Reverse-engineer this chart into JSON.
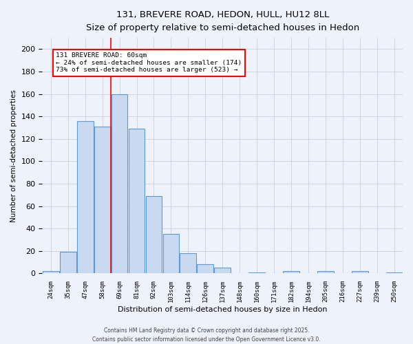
{
  "title1": "131, BREVERE ROAD, HEDON, HULL, HU12 8LL",
  "title2": "Size of property relative to semi-detached houses in Hedon",
  "xlabel": "Distribution of semi-detached houses by size in Hedon",
  "ylabel": "Number of semi-detached properties",
  "categories": [
    "24sqm",
    "35sqm",
    "47sqm",
    "58sqm",
    "69sqm",
    "81sqm",
    "92sqm",
    "103sqm",
    "114sqm",
    "126sqm",
    "137sqm",
    "148sqm",
    "160sqm",
    "171sqm",
    "182sqm",
    "194sqm",
    "205sqm",
    "216sqm",
    "227sqm",
    "239sqm",
    "250sqm"
  ],
  "values": [
    2,
    19,
    136,
    131,
    160,
    129,
    69,
    35,
    18,
    8,
    5,
    0,
    1,
    0,
    2,
    0,
    2,
    0,
    2,
    0,
    1
  ],
  "bar_color": "#c9d9f0",
  "bar_edge_color": "#5b9bd5",
  "vline_x": 3.5,
  "vline_color": "red",
  "annotation_title": "131 BREVERE ROAD: 60sqm",
  "annotation_line1": "← 24% of semi-detached houses are smaller (174)",
  "annotation_line2": "73% of semi-detached houses are larger (523) →",
  "annotation_box_color": "white",
  "annotation_box_edge": "red",
  "ylim": [
    0,
    210
  ],
  "yticks": [
    0,
    20,
    40,
    60,
    80,
    100,
    120,
    140,
    160,
    180,
    200
  ],
  "footer1": "Contains HM Land Registry data © Crown copyright and database right 2025.",
  "footer2": "Contains public sector information licensed under the Open Government Licence v3.0.",
  "bg_color": "#eef2fb"
}
